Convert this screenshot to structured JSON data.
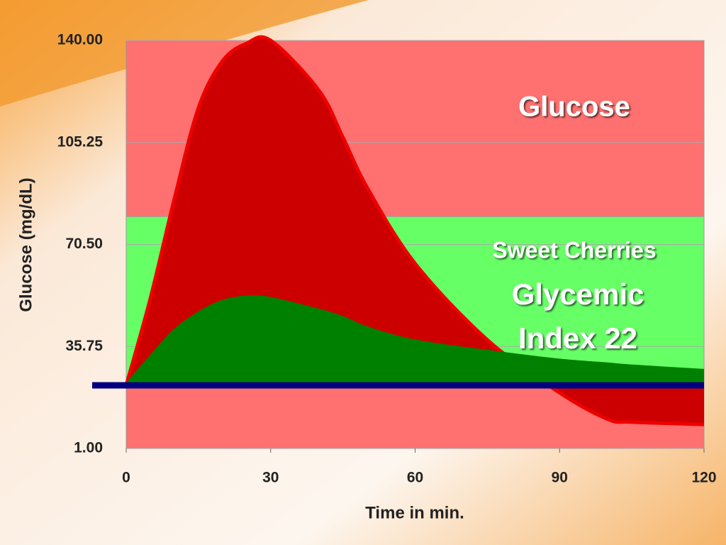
{
  "chart_data": {
    "type": "area",
    "title": "Glucose",
    "annotations": [
      "Sweet Cherries",
      "Glycemic",
      "Index 22"
    ],
    "x_label": "Time in min.",
    "y_label": "Glucose (mg/dL)",
    "x": [
      0,
      5,
      10,
      15,
      20,
      25,
      30,
      40,
      45,
      50,
      60,
      75,
      90,
      100,
      105,
      120
    ],
    "series": [
      {
        "name": "Glucose",
        "color": "#cc0000",
        "values": [
          22.5,
          52,
          86,
          117,
          133,
          139,
          140,
          123,
          107,
          90,
          64,
          38,
          20,
          11,
          10,
          9.2
        ]
      },
      {
        "name": "Sweet Cherries",
        "color": "#008000",
        "values": [
          22.5,
          32,
          41,
          47,
          51,
          52.5,
          52,
          48,
          45.5,
          42,
          37.5,
          34,
          31,
          29.7,
          29,
          27.5
        ]
      }
    ],
    "baseline": 22.5,
    "baseline_color": "#000080",
    "band": [
      22.5,
      80
    ],
    "band_color": "#66ff66",
    "plot_color": "#ff7070",
    "xlim": [
      0,
      120
    ],
    "xticks": [
      0,
      30,
      60,
      90,
      120
    ],
    "ylim": [
      1,
      140
    ],
    "yticks": [
      {
        "value": 1,
        "label": "1.00"
      },
      {
        "value": 35.75,
        "label": "35.75"
      },
      {
        "value": 70.5,
        "label": "70.50"
      },
      {
        "value": 105.25,
        "label": "105.25"
      },
      {
        "value": 140,
        "label": "140.00"
      }
    ],
    "grid": true
  }
}
